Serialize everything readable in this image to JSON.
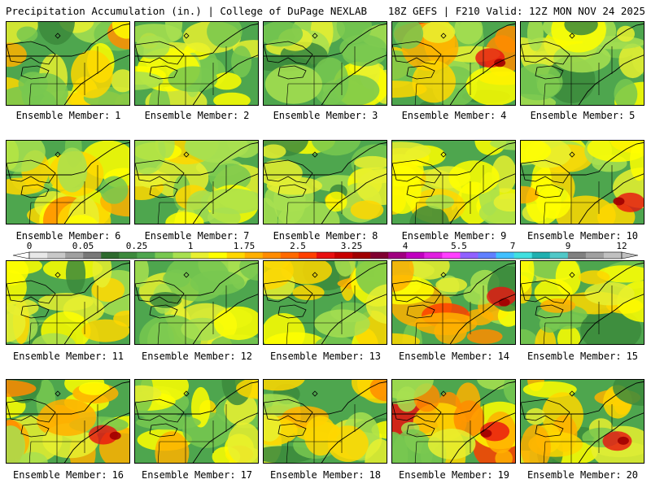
{
  "header": {
    "title": "Precipitation Accumulation (in.) | College of DuPage NEXLAB",
    "run_info": "18Z GEFS | F210 Valid: 12Z MON NOV 24 2025"
  },
  "member_label": "Ensemble Member:",
  "members": [
    {
      "number": "1",
      "wet": 1.0,
      "hot": 0
    },
    {
      "number": "2",
      "wet": 0.7,
      "hot": 0
    },
    {
      "number": "3",
      "wet": 0.5,
      "hot": 0
    },
    {
      "number": "4",
      "wet": 1.1,
      "hot": 1
    },
    {
      "number": "5",
      "wet": 0.6,
      "hot": 0
    },
    {
      "number": "6",
      "wet": 1.0,
      "hot": 0
    },
    {
      "number": "7",
      "wet": 0.8,
      "hot": 0
    },
    {
      "number": "8",
      "wet": 0.8,
      "hot": 0
    },
    {
      "number": "9",
      "wet": 0.9,
      "hot": 0
    },
    {
      "number": "10",
      "wet": 0.9,
      "hot": 1
    },
    {
      "number": "11",
      "wet": 0.8,
      "hot": 0
    },
    {
      "number": "12",
      "wet": 0.6,
      "hot": 0
    },
    {
      "number": "13",
      "wet": 0.9,
      "hot": 0
    },
    {
      "number": "14",
      "wet": 1.2,
      "hot": 1
    },
    {
      "number": "15",
      "wet": 0.8,
      "hot": 0
    },
    {
      "number": "16",
      "wet": 1.1,
      "hot": 1
    },
    {
      "number": "17",
      "wet": 0.9,
      "hot": 0
    },
    {
      "number": "18",
      "wet": 0.9,
      "hot": 0
    },
    {
      "number": "19",
      "wet": 1.3,
      "hot": 1
    },
    {
      "number": "20",
      "wet": 1.1,
      "hot": 1
    }
  ],
  "colorbar": {
    "labels": [
      "0",
      "0.05",
      "0.25",
      "1",
      "1.75",
      "2.5",
      "3.25",
      "4",
      "5.5",
      "7",
      "9",
      "12"
    ],
    "colors": [
      "#e8e8e8",
      "#c8c8c8",
      "#a0a0a0",
      "#787878",
      "#2e6b2e",
      "#3c8a3c",
      "#4ea64e",
      "#78c850",
      "#a8e050",
      "#e8f030",
      "#ffff00",
      "#ffd700",
      "#ffb000",
      "#ff8c00",
      "#ff6a00",
      "#ff4000",
      "#e81010",
      "#c80000",
      "#a00000",
      "#800030",
      "#a00080",
      "#c000c0",
      "#e020e0",
      "#ff40ff",
      "#9060ff",
      "#6080ff",
      "#40c0ff",
      "#40e0e0",
      "#20b0b0",
      "#50c8c8",
      "#808080",
      "#a0a0a0",
      "#c0c0c0"
    ]
  }
}
